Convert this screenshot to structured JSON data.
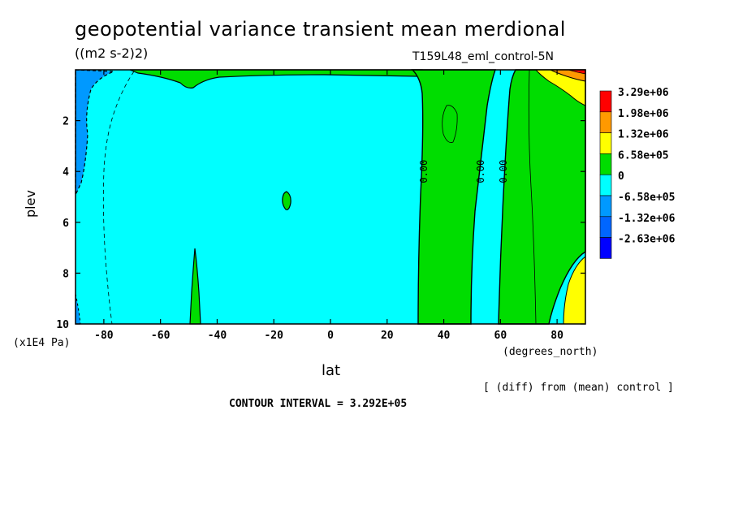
{
  "title": "geopotential variance transient mean merdional",
  "units": "((m2 s-2)2)",
  "run_name": "T159L48_eml_control-5N",
  "ylabel": "plev",
  "yunits": "(x1E4 Pa)",
  "xlabel": "lat",
  "xunits": "(degrees_north)",
  "note": "[ (diff) from (mean) control ]",
  "contour_interval": "CONTOUR INTERVAL = 3.292E+05",
  "contour_label": "0.00",
  "chart_data": {
    "type": "heatmap",
    "xlim": [
      -90,
      90
    ],
    "ylim": [
      0,
      10
    ],
    "y_inverted": true,
    "x_ticks": [
      -80,
      -60,
      -40,
      -20,
      0,
      20,
      40,
      60,
      80
    ],
    "y_ticks": [
      2,
      4,
      6,
      8,
      10
    ],
    "colorbar": [
      {
        "label": "3.29e+06",
        "color": "#ff0000"
      },
      {
        "label": "1.98e+06",
        "color": "#ff9900"
      },
      {
        "label": "1.32e+06",
        "color": "#ffff00"
      },
      {
        "label": "6.58e+05",
        "color": "#00dd00"
      },
      {
        "label": "0",
        "color": "#00ffff"
      },
      {
        "label": "-6.58e+05",
        "color": "#0099ff"
      },
      {
        "label": "-1.32e+06",
        "color": "#0066ff"
      },
      {
        "label": "-2.63e+06",
        "color": "#0000ff"
      }
    ],
    "zero_contour_labels_lat": [
      33,
      53,
      61
    ],
    "zero_contour_labels_plev": 4
  }
}
